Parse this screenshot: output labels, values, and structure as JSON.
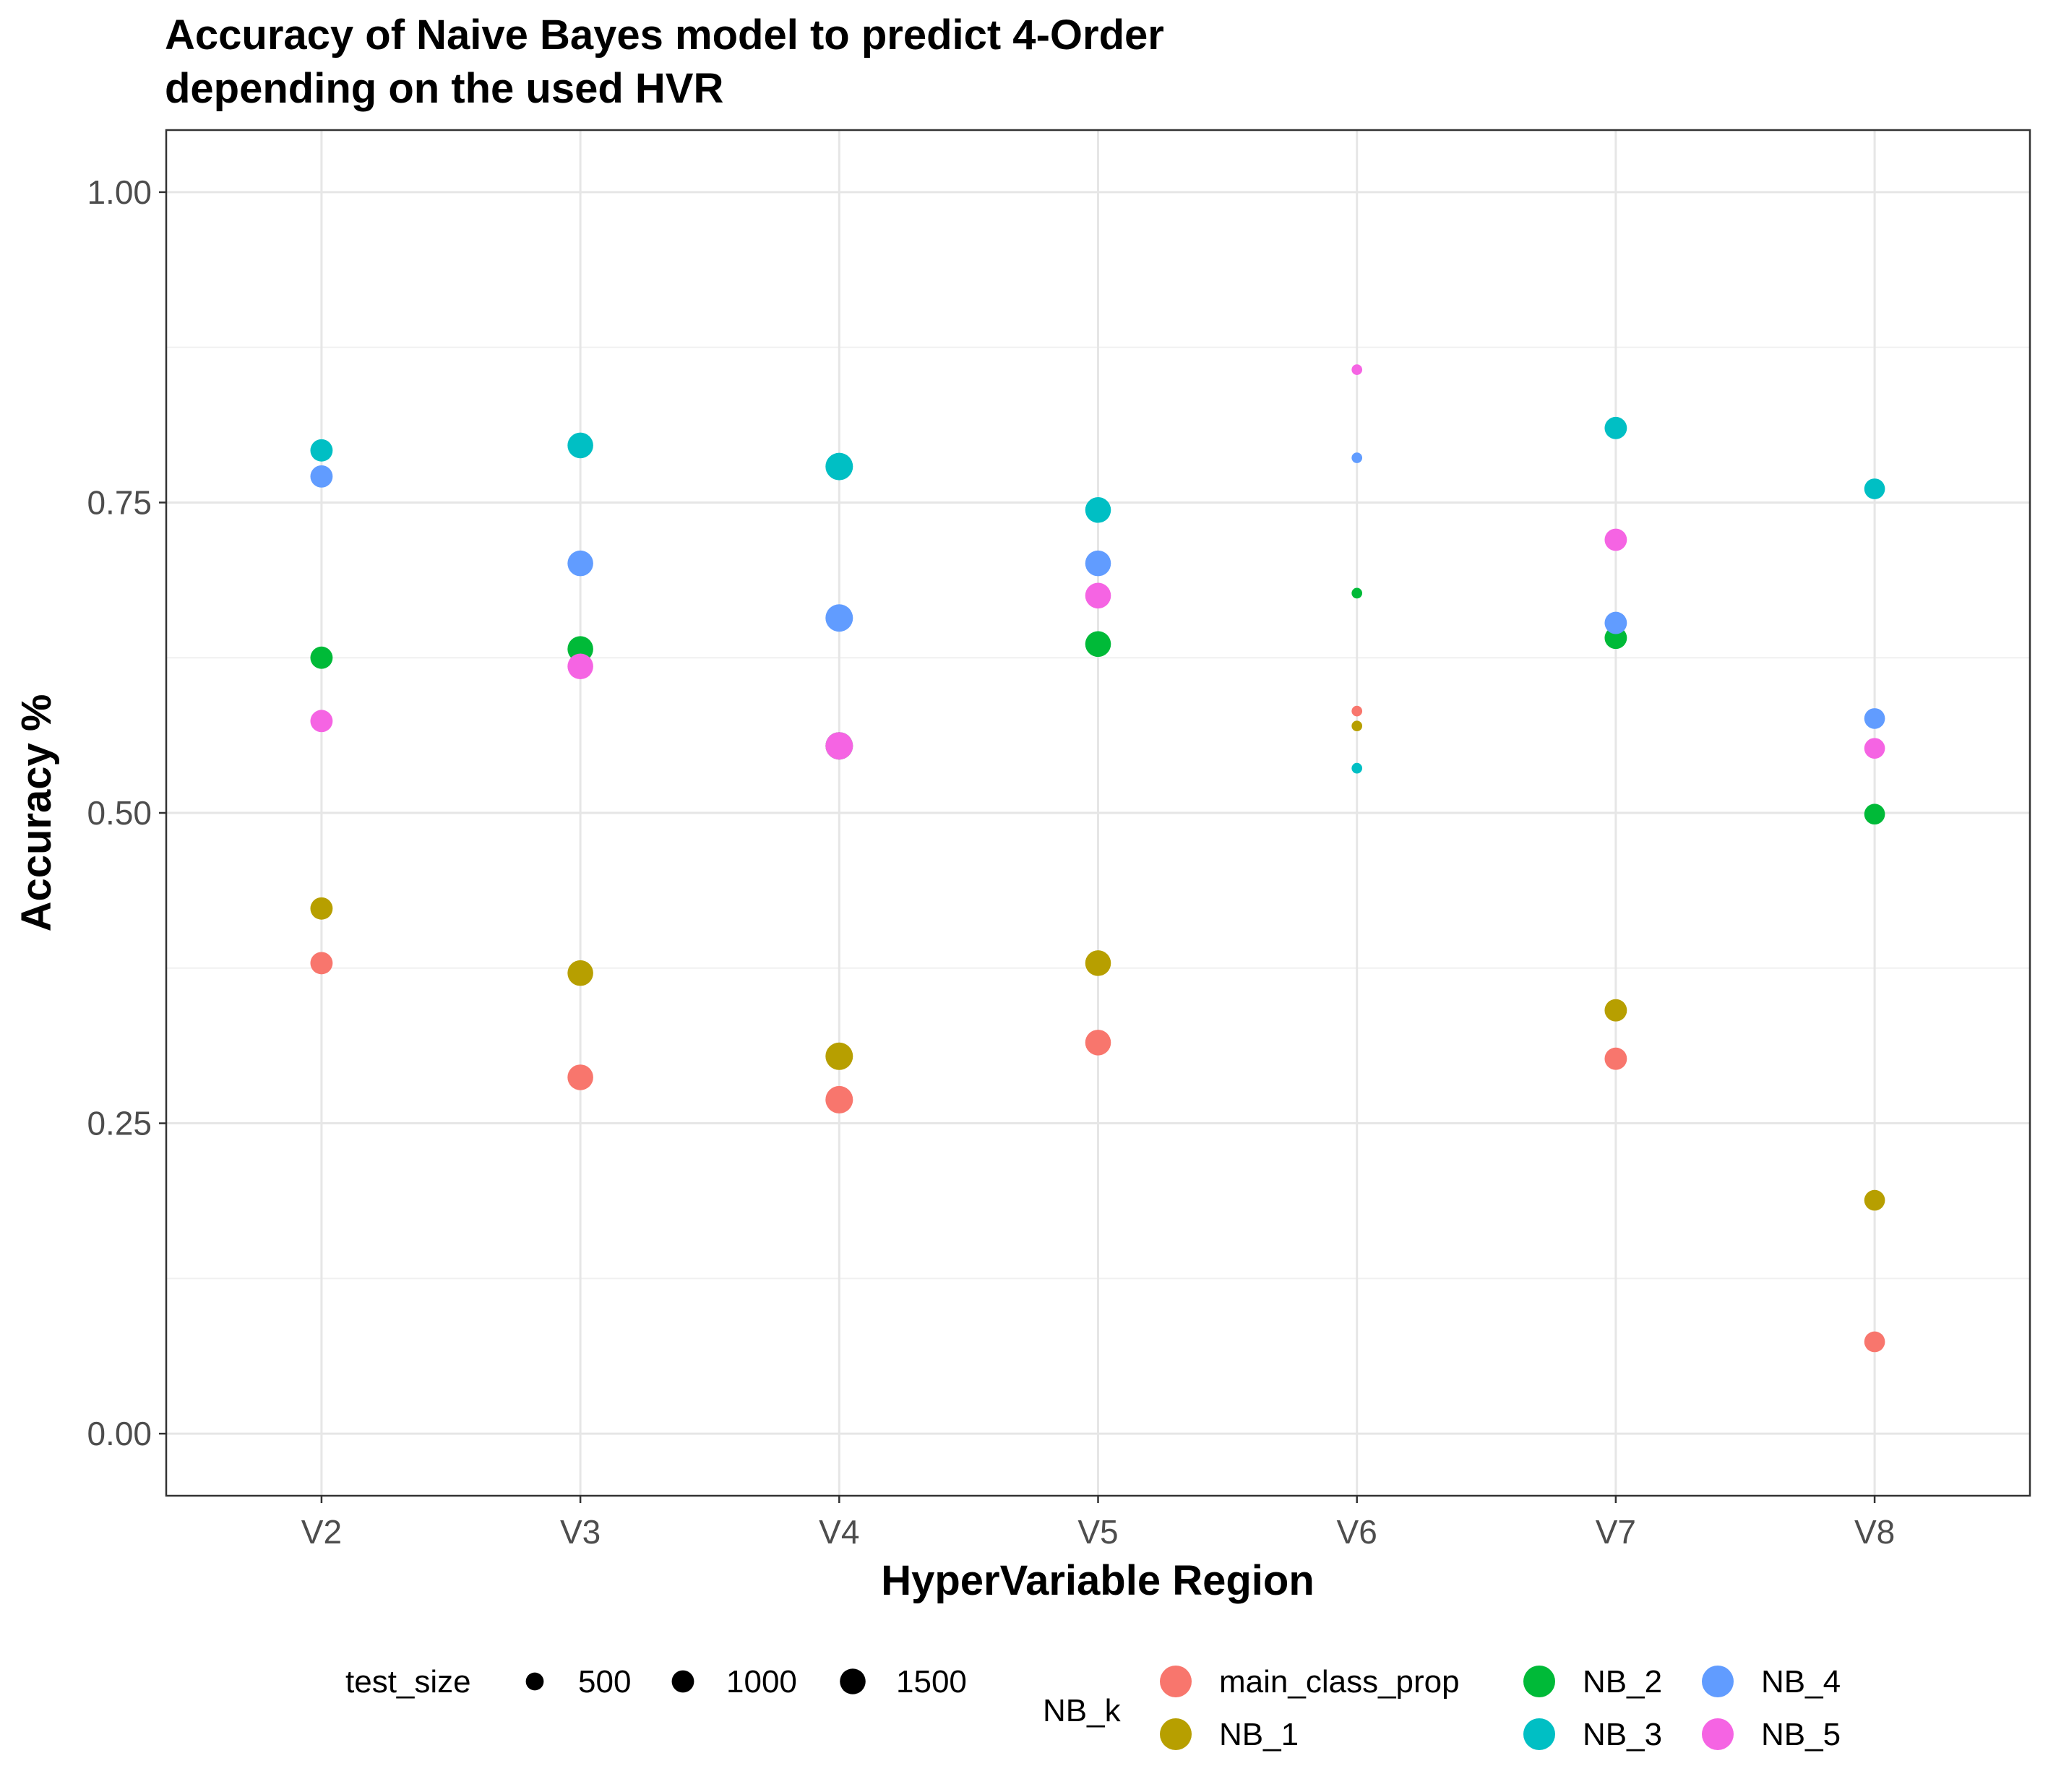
{
  "chart_data": {
    "type": "scatter",
    "title_line1": "Accuracy of Naive Bayes model to predict 4-Order",
    "title_line2": "depending on the used HVR",
    "xlabel": "HyperVariable Region",
    "ylabel": "Accuracy %",
    "categories": [
      "V2",
      "V3",
      "V4",
      "V5",
      "V6",
      "V7",
      "V8"
    ],
    "ylim": [
      -0.05,
      1.05
    ],
    "yticks": [
      0.0,
      0.25,
      0.5,
      0.75,
      1.0
    ],
    "ytick_labels": [
      "0.00",
      "0.25",
      "0.50",
      "0.75",
      "1.00"
    ],
    "grid": true,
    "legend_position": "bottom",
    "size_legend": {
      "title": "test_size",
      "entries": [
        {
          "label": "500",
          "value": 500
        },
        {
          "label": "1000",
          "value": 1000
        },
        {
          "label": "1500",
          "value": 1500
        }
      ]
    },
    "color_legend_title": "NB_k",
    "test_size": {
      "V2": 1000,
      "V3": 1500,
      "V4": 1800,
      "V5": 1500,
      "V6": 50,
      "V7": 1000,
      "V8": 800
    },
    "series": [
      {
        "name": "main_class_prop",
        "color": "#F8766D",
        "values": [
          0.379,
          0.287,
          0.269,
          0.315,
          0.582,
          0.302,
          0.074
        ]
      },
      {
        "name": "NB_1",
        "color": "#B79F00",
        "values": [
          0.423,
          0.371,
          0.304,
          0.379,
          0.57,
          0.341,
          0.188
        ]
      },
      {
        "name": "NB_2",
        "color": "#00BA38",
        "values": [
          0.625,
          0.632,
          0.554,
          0.636,
          0.677,
          0.641,
          0.499
        ]
      },
      {
        "name": "NB_3",
        "color": "#00BFC4",
        "values": [
          0.792,
          0.796,
          0.779,
          0.744,
          0.536,
          0.81,
          0.761
        ]
      },
      {
        "name": "NB_4",
        "color": "#619CFF",
        "values": [
          0.771,
          0.701,
          0.657,
          0.701,
          0.786,
          0.653,
          0.576
        ]
      },
      {
        "name": "NB_5",
        "color": "#F564E3",
        "values": [
          0.574,
          0.618,
          0.554,
          0.675,
          0.857,
          0.72,
          0.552
        ]
      }
    ]
  }
}
